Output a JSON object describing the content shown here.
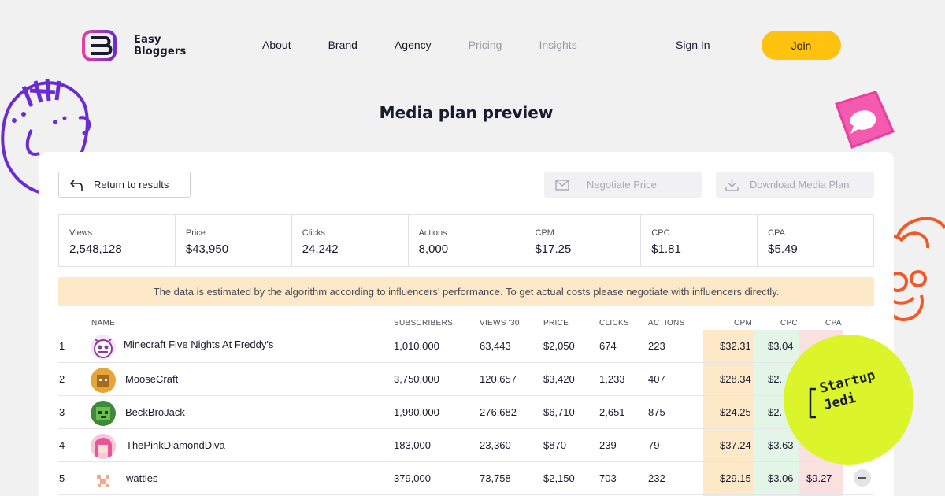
{
  "brand": {
    "name_line1": "Easy",
    "name_line2": "Bloggers"
  },
  "nav": {
    "items": [
      {
        "label": "About",
        "muted": false
      },
      {
        "label": "Brand",
        "muted": false
      },
      {
        "label": "Agency",
        "muted": false
      },
      {
        "label": "Pricing",
        "muted": true
      },
      {
        "label": "Insights",
        "muted": true
      }
    ],
    "sign_in": "Sign In",
    "join": "Join"
  },
  "page": {
    "title": "Media plan preview"
  },
  "actions": {
    "return": "Return to results",
    "negotiate": "Negotiate Price",
    "download": "Download Media Plan"
  },
  "stats": [
    {
      "label": "Views",
      "value": "2,548,128"
    },
    {
      "label": "Price",
      "value": "$43,950"
    },
    {
      "label": "Clicks",
      "value": "24,242"
    },
    {
      "label": "Actions",
      "value": "8,000"
    },
    {
      "label": "CPM",
      "value": "$17.25"
    },
    {
      "label": "CPC",
      "value": "$1.81"
    },
    {
      "label": "CPA",
      "value": "$5.49"
    }
  ],
  "notice": "The data is estimated by the algorithm according to influencers' performance. To get actual costs please negotiate with influencers directly.",
  "table": {
    "headers": {
      "name": "NAME",
      "subscribers": "SUBSCRIBERS",
      "views": "VIEWS '30",
      "price": "PRICE",
      "clicks": "CLICKS",
      "actions": "ACTIONS",
      "cpm": "CPM",
      "cpc": "CPC",
      "cpa": "CPA"
    },
    "rows": [
      {
        "num": "1",
        "name": "Minecraft Five Nights At Freddy's",
        "subscribers": "1,010,000",
        "views": "63,443",
        "price": "$2,050",
        "clicks": "674",
        "actions": "223",
        "cpm": "$32.31",
        "cpc": "$3.04",
        "cpa": ""
      },
      {
        "num": "2",
        "name": "MooseCraft",
        "subscribers": "3,750,000",
        "views": "120,657",
        "price": "$3,420",
        "clicks": "1,233",
        "actions": "407",
        "cpm": "$28.34",
        "cpc": "$2.",
        "cpa": ""
      },
      {
        "num": "3",
        "name": "BeckBroJack",
        "subscribers": "1,990,000",
        "views": "276,682",
        "price": "$6,710",
        "clicks": "2,651",
        "actions": "875",
        "cpm": "$24.25",
        "cpc": "$2.",
        "cpa": ""
      },
      {
        "num": "4",
        "name": "ThePinkDiamondDiva",
        "subscribers": "183,000",
        "views": "23,360",
        "price": "$870",
        "clicks": "239",
        "actions": "79",
        "cpm": "$37.24",
        "cpc": "$3.63",
        "cpa": ""
      },
      {
        "num": "5",
        "name": "wattles",
        "subscribers": "379,000",
        "views": "73,758",
        "price": "$2,150",
        "clicks": "703",
        "actions": "232",
        "cpm": "$29.15",
        "cpc": "$3.06",
        "cpa": "$9.27"
      }
    ]
  },
  "badge": {
    "line1": "Startup",
    "line2": "Jedi"
  },
  "colors": {
    "accent": "#ffc20e",
    "cpm_bg": "#fde8c8",
    "cpc_bg": "#e3f5e6",
    "badge": "#dcf52a"
  }
}
